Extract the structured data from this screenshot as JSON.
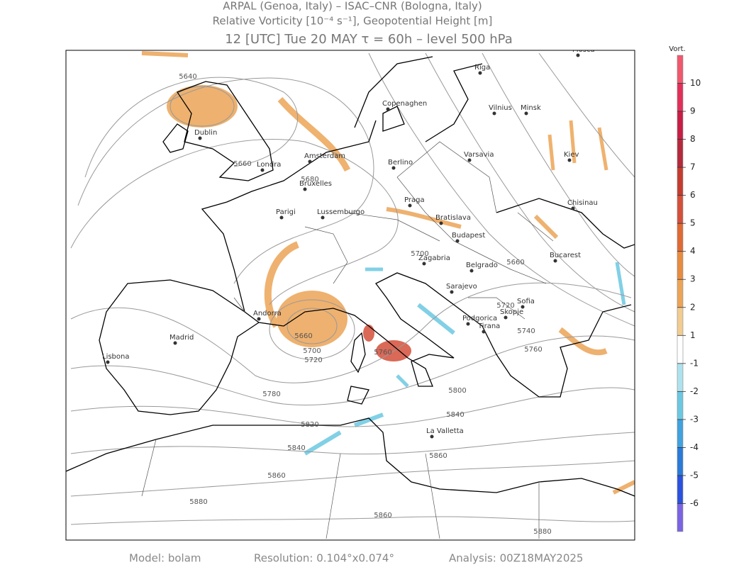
{
  "header": {
    "line1": "ARPAL (Genoa, Italy)  –  ISAC–CNR (Bologna, Italy)",
    "line2": "Relative Vorticity [10⁻⁴ s⁻¹], Geopotential Height [m]",
    "line3": "12 [UTC] Tue 20 MAY  τ = 60h  –  level 500 hPa"
  },
  "footer": {
    "model": "Model: bolam",
    "resolution": "Resolution: 0.104°x0.074°",
    "analysis": "Analysis: 00Z18MAY2025"
  },
  "colorbar": {
    "title": "Vort.",
    "levels": [
      11,
      10,
      9,
      8,
      7,
      6,
      5,
      4,
      3,
      2,
      1,
      -1,
      -2,
      -3,
      -4,
      -5,
      -6,
      -7
    ],
    "colors": [
      "#f0586e",
      "#e0305a",
      "#c81e46",
      "#b42a3c",
      "#c43c30",
      "#d4503a",
      "#e06a34",
      "#e88c40",
      "#eca456",
      "#f2cc90",
      "#ffffff",
      "#aee2ee",
      "#6cc8e2",
      "#40a2de",
      "#2a7ad8",
      "#2a52de",
      "#7a64e2"
    ],
    "ticks": [
      10,
      9,
      8,
      7,
      6,
      5,
      4,
      3,
      2,
      1,
      -1,
      -2,
      -3,
      -4,
      -5,
      -6
    ]
  },
  "cities": [
    "Mosca",
    "Riga",
    "Vilnius",
    "Minsk",
    "Copenaghen",
    "Dublin",
    "Londra",
    "Amsterdam",
    "Berlino",
    "Varsavia",
    "Kiev",
    "Bruxelles",
    "Praga",
    "Parigi",
    "Lussemburgo",
    "Bratislava",
    "Chisinau",
    "Budapest",
    "Zagabria",
    "Belgrado",
    "Bucarest",
    "Sarajevo",
    "Sofia",
    "Podgorica",
    "Tirana",
    "Skopje",
    "Andorra",
    "Madrid",
    "Lisbona",
    "La Valletta"
  ],
  "contour_labels": [
    5640,
    5660,
    5680,
    5700,
    5660,
    5720,
    5740,
    5760,
    5780,
    5800,
    5820,
    5840,
    5840,
    5860,
    5860,
    5880,
    5860,
    5880,
    5660,
    5700,
    5720,
    5760
  ]
}
